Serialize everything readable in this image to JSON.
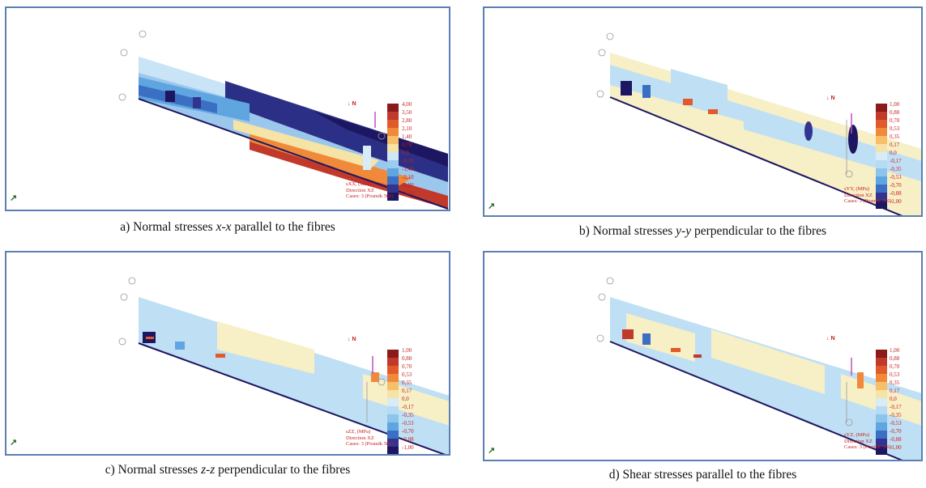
{
  "panels": [
    {
      "letter": "a)",
      "caption_pre": "Normal stresses ",
      "caption_axis": "x-x",
      "caption_post": " parallel to the fibres",
      "quantity": "sXX, (MPa)",
      "direction": "Direction XZ",
      "cases": "Cases: 3 (Posmik 500)",
      "north": "↓ N",
      "scale": [
        "4,00",
        "3,50",
        "2,80",
        "2,10",
        "1,40",
        "0,70",
        "0,0",
        "-0,70",
        "-1,40",
        "-2,10",
        "-2,80",
        "-3,50"
      ],
      "scale_colors": [
        "#8b1a1a",
        "#c0392b",
        "#e05a2a",
        "#f08a3a",
        "#f6bf6a",
        "#f6e3a6",
        "#cfe6f5",
        "#9ccbee",
        "#5fa6e0",
        "#3b6fc4",
        "#33348f",
        "#1d1660"
      ]
    },
    {
      "letter": "b)",
      "caption_pre": "Normal stresses ",
      "caption_axis": "y-y",
      "caption_post": " perpendicular to the fibres",
      "quantity": "sYY, (MPa)",
      "direction": "Direction XZ",
      "cases": "Cases: 3 (Posmik 500)",
      "north": "↓ N",
      "scale": [
        "1,00",
        "0,88",
        "0,70",
        "0,53",
        "0,35",
        "0,17",
        "0,0",
        "-0,17",
        "-0,35",
        "-0,53",
        "-0,70",
        "-0,88",
        "-1,00"
      ],
      "scale_colors": [
        "#8b1a1a",
        "#c0392b",
        "#e05a2a",
        "#f08a3a",
        "#f6bf6a",
        "#f6e3a6",
        "#d7ecf7",
        "#b6dbf2",
        "#8cc4ec",
        "#5fa6e0",
        "#3b6fc4",
        "#33348f",
        "#1d1660"
      ]
    },
    {
      "letter": "c)",
      "caption_pre": "Normal stresses ",
      "caption_axis": "z-z",
      "caption_post": " perpendicular to the fibres",
      "quantity": "sZZ, (MPa)",
      "direction": "Direction XZ",
      "cases": "Cases: 3 (Posmik 500)",
      "north": "↓ N",
      "scale": [
        "1,00",
        "0,88",
        "0,70",
        "0,53",
        "0,35",
        "0,17",
        "0,0",
        "-0,17",
        "-0,35",
        "-0,53",
        "-0,70",
        "-0,88",
        "-1,00"
      ],
      "scale_colors": [
        "#8b1a1a",
        "#c0392b",
        "#e05a2a",
        "#f08a3a",
        "#f6bf6a",
        "#f6e3a6",
        "#d7ecf7",
        "#b6dbf2",
        "#8cc4ec",
        "#5fa6e0",
        "#3b6fc4",
        "#33348f",
        "#1d1660"
      ]
    },
    {
      "letter": "d)",
      "caption_pre": "Shear stresses parallel to the fibres",
      "caption_axis": "",
      "caption_post": "",
      "quantity": "sYZ, (MPa)",
      "direction": "Direction XZ",
      "cases": "Cases: 3 (Posmik 500)",
      "north": "↓ N",
      "scale": [
        "1,00",
        "0,88",
        "0,70",
        "0,53",
        "0,35",
        "0,17",
        "0,0",
        "-0,17",
        "-0,35",
        "-0,53",
        "-0,70",
        "-0,88",
        "-1,00"
      ],
      "scale_colors": [
        "#8b1a1a",
        "#c0392b",
        "#e05a2a",
        "#f08a3a",
        "#f6bf6a",
        "#f6e3a6",
        "#d7ecf7",
        "#b6dbf2",
        "#8cc4ec",
        "#5fa6e0",
        "#3b6fc4",
        "#33348f",
        "#1d1660"
      ]
    }
  ],
  "colors": {
    "frame": "#5b7fb4",
    "label_red": "#c81e1e",
    "beam_light_blue": "#bfe0f4",
    "beam_cream": "#f7efc6"
  }
}
